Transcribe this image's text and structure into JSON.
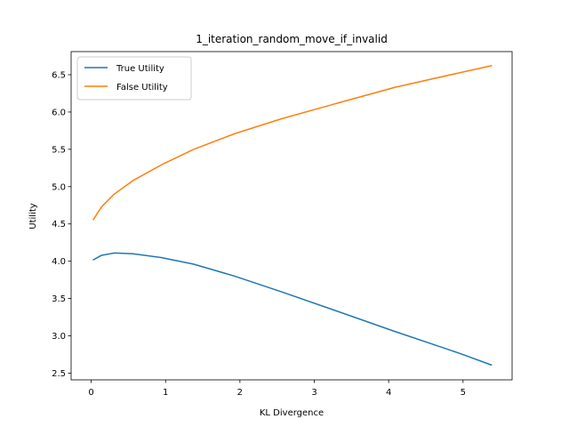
{
  "chart_data": {
    "type": "line",
    "title": "1_iteration_random_move_if_invalid",
    "xlabel": "KL Divergence",
    "ylabel": "Utility",
    "xlim": [
      -0.27,
      5.66
    ],
    "ylim": [
      2.41,
      6.81
    ],
    "xticks": [
      0,
      1,
      2,
      3,
      4,
      5
    ],
    "yticks": [
      2.5,
      3.0,
      3.5,
      4.0,
      4.5,
      5.0,
      5.5,
      6.0,
      6.5
    ],
    "ytick_labels": [
      "2.5",
      "3.0",
      "3.5",
      "4.0",
      "4.5",
      "5.0",
      "5.5",
      "6.0",
      "6.5"
    ],
    "xtick_labels": [
      "0",
      "1",
      "2",
      "3",
      "4",
      "5"
    ],
    "grid": false,
    "legend_position": "upper-left",
    "series": [
      {
        "name": "True Utility",
        "color": "#1f77b4",
        "x": [
          0.03,
          0.14,
          0.31,
          0.56,
          0.94,
          1.38,
          1.93,
          2.56,
          3.28,
          4.08,
          4.97,
          5.38
        ],
        "y": [
          4.02,
          4.08,
          4.11,
          4.1,
          4.05,
          3.96,
          3.8,
          3.59,
          3.34,
          3.06,
          2.76,
          2.61
        ]
      },
      {
        "name": "False Utility",
        "color": "#ff7f0e",
        "x": [
          0.03,
          0.14,
          0.31,
          0.56,
          0.94,
          1.38,
          1.93,
          2.56,
          3.28,
          4.08,
          4.97,
          5.38
        ],
        "y": [
          4.56,
          4.73,
          4.9,
          5.08,
          5.29,
          5.5,
          5.71,
          5.91,
          6.11,
          6.33,
          6.53,
          6.62
        ]
      }
    ]
  }
}
